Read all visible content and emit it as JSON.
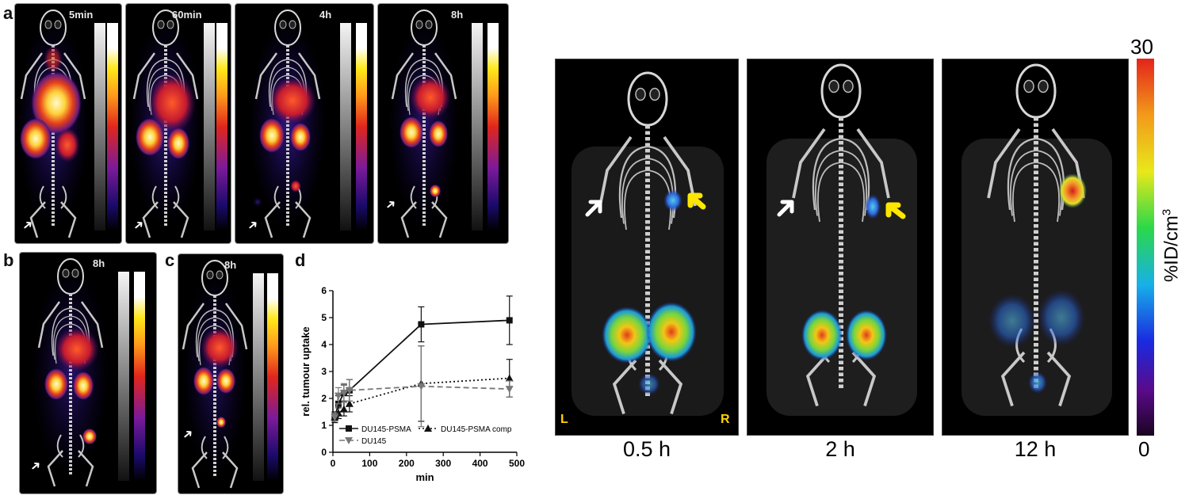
{
  "panels": {
    "a": {
      "letter": "a",
      "times": [
        "5min",
        "60min",
        "4h",
        "8h"
      ]
    },
    "b": {
      "letter": "b",
      "time": "8h"
    },
    "c": {
      "letter": "c",
      "time": "8h"
    },
    "d": {
      "letter": "d"
    }
  },
  "colors": {
    "hot_low": "#2a0a6a",
    "hot_mid": "#e0361c",
    "hot_high": "#fff7b0",
    "jet_low": "#1a0a55",
    "jet_high": "#e3241b",
    "arrow_yellow": "#ffe600"
  },
  "chart_data": {
    "type": "line",
    "ylabel": "rel. tumour uptake",
    "xlabel": "min",
    "xlim": [
      0,
      500
    ],
    "ylim": [
      0,
      6
    ],
    "xticks": [
      "0",
      "100",
      "200",
      "300",
      "400",
      "500"
    ],
    "yticks": [
      "0",
      "1",
      "2",
      "3",
      "4",
      "5",
      "6"
    ],
    "series": [
      {
        "name": "DU145-PSMA",
        "marker": "square",
        "line": "solid",
        "color": "#111111",
        "x": [
          5,
          15,
          30,
          45,
          240,
          480
        ],
        "y": [
          1.3,
          1.8,
          2.2,
          2.3,
          4.75,
          4.9
        ],
        "err": [
          0.2,
          0.3,
          0.3,
          0.4,
          0.65,
          0.9
        ]
      },
      {
        "name": "DU145-PSMA comp",
        "marker": "triangle-up",
        "line": "dotted",
        "color": "#111111",
        "x": [
          5,
          15,
          30,
          45,
          240,
          480
        ],
        "y": [
          1.3,
          1.45,
          1.6,
          1.8,
          2.55,
          2.75
        ],
        "err": [
          0.15,
          0.2,
          0.25,
          0.3,
          1.4,
          0.7
        ]
      },
      {
        "name": "DU145",
        "marker": "triangle-down",
        "line": "dashed",
        "color": "#777777",
        "x": [
          5,
          15,
          30,
          45,
          240,
          480
        ],
        "y": [
          1.3,
          2.1,
          2.2,
          2.3,
          2.45,
          2.35
        ],
        "err": [
          0.15,
          0.3,
          0.35,
          0.4,
          1.5,
          0.3
        ]
      }
    ]
  },
  "right_figure": {
    "times": [
      "0.5 h",
      "2 h",
      "12 h"
    ],
    "left_label": "L",
    "right_label": "R",
    "colorbar": {
      "max": "30",
      "min": "0",
      "unit": "%ID/cm",
      "unit_sup": "3"
    }
  }
}
